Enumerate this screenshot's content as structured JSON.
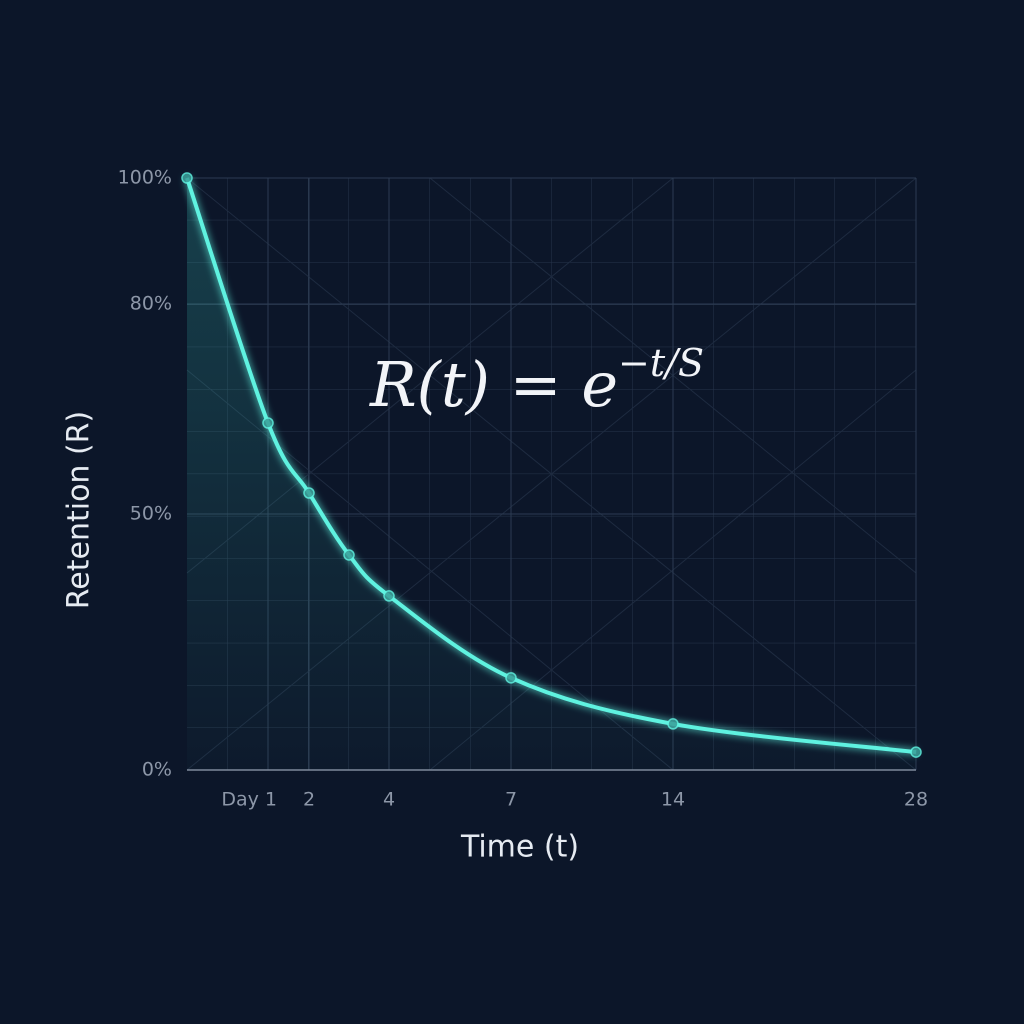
{
  "chart_data": {
    "type": "line",
    "x_label": "Time (t)",
    "y_label": "Retention (R)",
    "annotation": {
      "base": "R(t) = e",
      "exponent": "−t/S"
    },
    "x": [
      0,
      1,
      2,
      3,
      4,
      7,
      14,
      28
    ],
    "series": [
      {
        "color": "#5ff2e0",
        "values": [
          100,
          63,
          53,
          42,
          34,
          18,
          9,
          3.5
        ]
      }
    ],
    "xlim": [
      0,
      28
    ],
    "xticks": [
      {
        "value": 1,
        "label": "Day 1"
      },
      2,
      4,
      7,
      14,
      28
    ],
    "ylim": [
      0,
      100
    ],
    "yticks": [
      {
        "value": 0,
        "label": "0%"
      },
      {
        "value": 50,
        "label": "50%"
      },
      {
        "value": 80,
        "label": "80%"
      },
      {
        "value": 100,
        "label": "100%"
      }
    ],
    "grid": true
  }
}
